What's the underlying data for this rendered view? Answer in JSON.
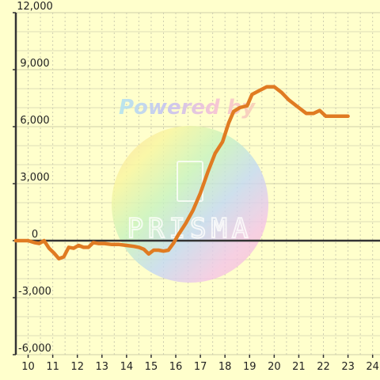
{
  "chart_data": {
    "type": "line",
    "title": "",
    "xlabel": "",
    "ylabel": "",
    "xlim": [
      9.5,
      24.3
    ],
    "ylim": [
      -6000,
      12000
    ],
    "x_ticks": [
      10,
      11,
      12,
      13,
      14,
      15,
      16,
      17,
      18,
      19,
      20,
      21,
      22,
      23,
      24
    ],
    "y_ticks": [
      -6000,
      -3000,
      0,
      3000,
      6000,
      9000,
      12000
    ],
    "x_tick_labels": [
      "10",
      "11",
      "12",
      "13",
      "14",
      "15",
      "16",
      "17",
      "18",
      "19",
      "20",
      "21",
      "22",
      "23",
      "24"
    ],
    "y_tick_labels": [
      "-6,000",
      "-3,000",
      "0",
      "3,000",
      "6,000",
      "9,000",
      "12,000"
    ],
    "grid": true,
    "series": [
      {
        "color": "#e07b22",
        "points": [
          [
            9.5,
            0
          ],
          [
            10.0,
            0
          ],
          [
            10.25,
            -100
          ],
          [
            10.45,
            -150
          ],
          [
            10.65,
            0
          ],
          [
            10.85,
            -400
          ],
          [
            11.05,
            -650
          ],
          [
            11.25,
            -950
          ],
          [
            11.45,
            -850
          ],
          [
            11.65,
            -350
          ],
          [
            11.85,
            -400
          ],
          [
            12.05,
            -250
          ],
          [
            12.25,
            -350
          ],
          [
            12.45,
            -350
          ],
          [
            12.65,
            -100
          ],
          [
            12.85,
            -150
          ],
          [
            13.1,
            -150
          ],
          [
            13.4,
            -200
          ],
          [
            13.7,
            -200
          ],
          [
            14.0,
            -250
          ],
          [
            14.3,
            -300
          ],
          [
            14.5,
            -350
          ],
          [
            14.7,
            -450
          ],
          [
            14.9,
            -700
          ],
          [
            15.1,
            -500
          ],
          [
            15.3,
            -500
          ],
          [
            15.5,
            -550
          ],
          [
            15.7,
            -500
          ],
          [
            15.9,
            -150
          ],
          [
            16.1,
            300
          ],
          [
            16.4,
            900
          ],
          [
            16.7,
            1600
          ],
          [
            17.0,
            2500
          ],
          [
            17.3,
            3600
          ],
          [
            17.6,
            4600
          ],
          [
            17.9,
            5200
          ],
          [
            18.15,
            6200
          ],
          [
            18.35,
            6800
          ],
          [
            18.6,
            7000
          ],
          [
            18.9,
            7100
          ],
          [
            19.1,
            7700
          ],
          [
            19.4,
            7900
          ],
          [
            19.7,
            8100
          ],
          [
            20.0,
            8100
          ],
          [
            20.3,
            7800
          ],
          [
            20.6,
            7400
          ],
          [
            20.9,
            7100
          ],
          [
            21.1,
            6900
          ],
          [
            21.3,
            6700
          ],
          [
            21.6,
            6700
          ],
          [
            21.85,
            6850
          ],
          [
            22.1,
            6550
          ],
          [
            22.5,
            6550
          ],
          [
            22.9,
            6550
          ],
          [
            23.0,
            6550
          ]
        ]
      }
    ]
  },
  "watermark": {
    "text": "Powered by",
    "logo": "PRISMA"
  }
}
